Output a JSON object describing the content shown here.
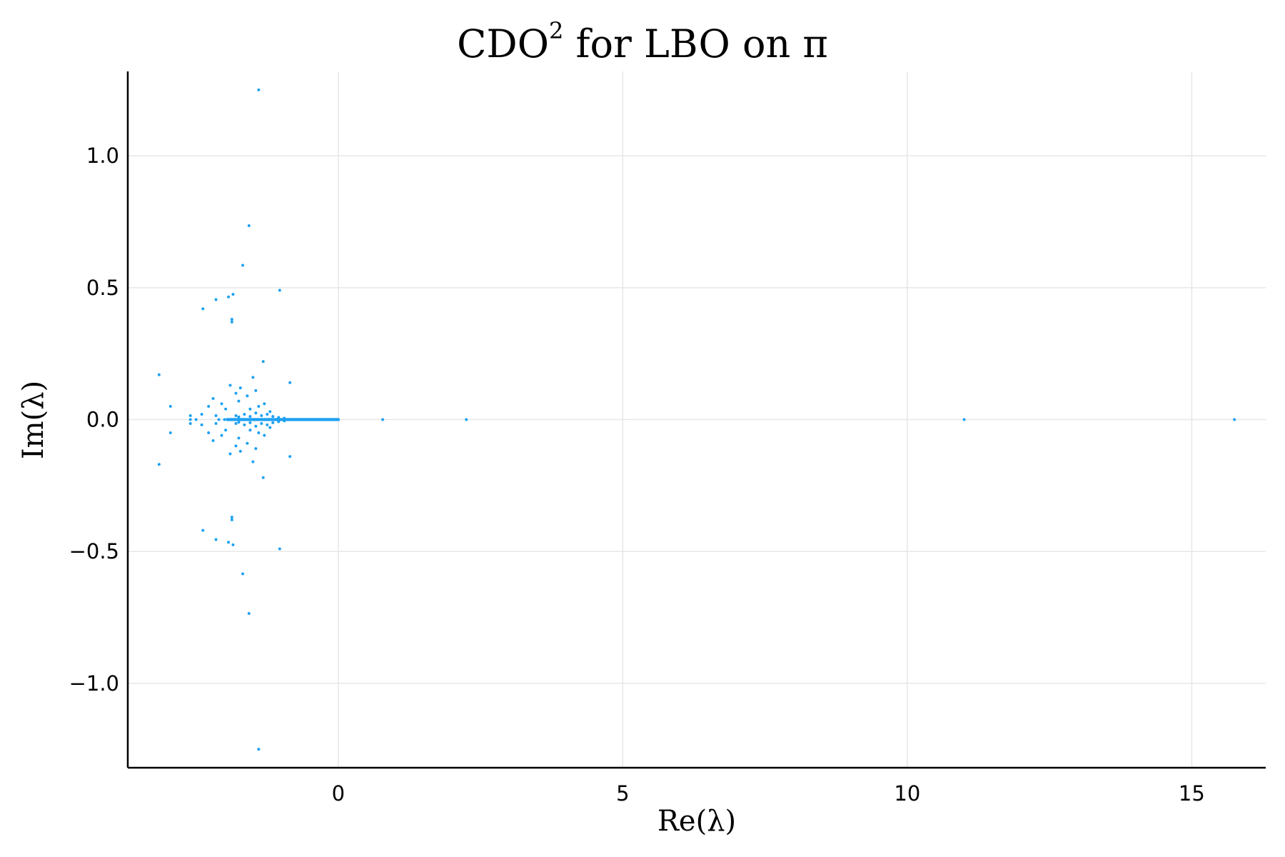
{
  "chart_data": {
    "type": "scatter",
    "title": "CDO",
    "title_superscript": "2",
    "title_rest": " for LBO on π",
    "xlabel": "Re(λ)",
    "ylabel": "Im(λ)",
    "xlim": [
      -3.7,
      16.3
    ],
    "ylim": [
      -1.32,
      1.32
    ],
    "xticks": [
      0,
      5,
      10,
      15
    ],
    "xtick_labels": [
      "0",
      "5",
      "10",
      "15"
    ],
    "yticks": [
      1.0,
      0.5,
      0.0,
      -0.5,
      -1.0
    ],
    "ytick_labels": [
      "1.0",
      "0.5",
      "0.0",
      "−0.5",
      "−1.0"
    ],
    "grid": true,
    "legend": "none",
    "marker_color": "#1ea1f2",
    "series": [
      {
        "points": [
          [
            -1.4,
            1.25
          ],
          [
            -1.4,
            -1.25
          ],
          [
            -1.57,
            0.735
          ],
          [
            -1.57,
            -0.735
          ],
          [
            -1.68,
            0.585
          ],
          [
            -1.68,
            -0.585
          ],
          [
            -1.03,
            0.49
          ],
          [
            -1.03,
            -0.49
          ],
          [
            -1.85,
            0.475
          ],
          [
            -1.85,
            -0.475
          ],
          [
            -1.93,
            0.465
          ],
          [
            -1.93,
            -0.465
          ],
          [
            -2.15,
            0.455
          ],
          [
            -2.15,
            -0.455
          ],
          [
            -2.38,
            0.42
          ],
          [
            -2.38,
            -0.42
          ],
          [
            -1.87,
            0.38
          ],
          [
            -1.87,
            -0.38
          ],
          [
            -1.87,
            0.37
          ],
          [
            -1.87,
            -0.37
          ],
          [
            -1.32,
            0.22
          ],
          [
            -1.32,
            -0.22
          ],
          [
            -3.15,
            0.17
          ],
          [
            -3.15,
            -0.17
          ],
          [
            -0.85,
            0.14
          ],
          [
            -0.85,
            -0.14
          ],
          [
            -1.5,
            0.16
          ],
          [
            -1.5,
            -0.16
          ],
          [
            -1.9,
            0.13
          ],
          [
            -1.9,
            -0.13
          ],
          [
            -1.72,
            0.12
          ],
          [
            -1.72,
            -0.12
          ],
          [
            -1.45,
            0.11
          ],
          [
            -1.45,
            -0.11
          ],
          [
            -1.8,
            0.1
          ],
          [
            -1.8,
            -0.1
          ],
          [
            -2.2,
            0.08
          ],
          [
            -2.2,
            -0.08
          ],
          [
            -1.6,
            0.09
          ],
          [
            -1.6,
            -0.09
          ],
          [
            -2.95,
            0.05
          ],
          [
            -2.95,
            -0.05
          ],
          [
            -1.98,
            0.04
          ],
          [
            -1.98,
            -0.04
          ],
          [
            -1.3,
            0.06
          ],
          [
            -1.3,
            -0.06
          ],
          [
            -2.28,
            0.05
          ],
          [
            -2.28,
            -0.05
          ],
          [
            -1.75,
            0.07
          ],
          [
            -1.75,
            -0.07
          ],
          [
            -1.4,
            0.05
          ],
          [
            -1.4,
            -0.05
          ],
          [
            -2.05,
            0.06
          ],
          [
            -2.05,
            -0.06
          ],
          [
            -1.55,
            0.04
          ],
          [
            -1.55,
            -0.04
          ],
          [
            -1.2,
            0.03
          ],
          [
            -1.2,
            -0.03
          ],
          [
            -2.6,
            0.015
          ],
          [
            -2.6,
            -0.015
          ],
          [
            -2.5,
            0.0
          ],
          [
            -2.6,
            0.0
          ],
          [
            -2.4,
            0.02
          ],
          [
            -2.4,
            -0.02
          ],
          [
            -2.15,
            0.015
          ],
          [
            -2.15,
            -0.015
          ],
          [
            -2.1,
            0.0
          ],
          [
            -2.0,
            0.0
          ],
          [
            -1.95,
            0.0
          ],
          [
            -1.9,
            0.0
          ],
          [
            -1.85,
            0.0
          ],
          [
            -1.8,
            0.015
          ],
          [
            -1.8,
            -0.015
          ],
          [
            -1.8,
            0.0
          ],
          [
            -1.75,
            0.01
          ],
          [
            -1.75,
            -0.01
          ],
          [
            -1.7,
            0.0
          ],
          [
            -1.65,
            0.02
          ],
          [
            -1.65,
            -0.02
          ],
          [
            -1.6,
            0.0
          ],
          [
            -1.55,
            0.012
          ],
          [
            -1.55,
            -0.012
          ],
          [
            -1.5,
            0.0
          ],
          [
            -1.45,
            0.025
          ],
          [
            -1.45,
            -0.025
          ],
          [
            -1.4,
            0.0
          ],
          [
            -1.35,
            0.015
          ],
          [
            -1.35,
            -0.015
          ],
          [
            -1.3,
            0.0
          ],
          [
            -1.25,
            0.02
          ],
          [
            -1.25,
            -0.02
          ],
          [
            -1.2,
            0.0
          ],
          [
            -1.15,
            0.012
          ],
          [
            -1.15,
            -0.012
          ],
          [
            -1.1,
            0.0
          ],
          [
            -1.05,
            0.008
          ],
          [
            -1.05,
            -0.008
          ],
          [
            -1.0,
            0.0
          ],
          [
            -0.95,
            0.005
          ],
          [
            -0.95,
            -0.005
          ],
          [
            -0.9,
            0.0
          ],
          [
            -0.8,
            0.0
          ],
          [
            -0.7,
            0.0
          ],
          [
            -0.6,
            0.0
          ],
          [
            -0.5,
            0.0
          ],
          [
            -0.4,
            0.0
          ],
          [
            -0.3,
            0.0
          ],
          [
            -0.2,
            0.0
          ],
          [
            -0.1,
            0.0
          ],
          [
            0.0,
            0.0
          ],
          [
            0.78,
            0.0
          ],
          [
            2.25,
            0.0
          ],
          [
            11.0,
            0.0
          ],
          [
            15.75,
            0.0
          ]
        ]
      }
    ]
  }
}
